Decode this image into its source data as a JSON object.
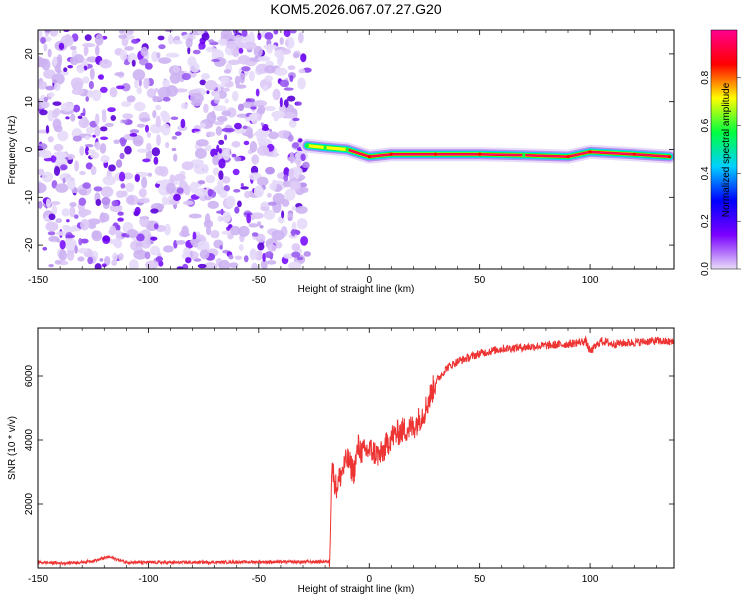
{
  "chart_data": [
    {
      "type": "heatmap",
      "title": "KOM5.2026.067.07.27.G20",
      "xlabel": "Height of straight line (km)",
      "ylabel": "Frequency (Hz)",
      "xlim": [
        -150,
        138
      ],
      "ylim": [
        -25,
        25
      ],
      "x_ticks": [
        "-150",
        "-100",
        "-50",
        "0",
        "50",
        "100"
      ],
      "x_tick_values": [
        -150,
        -100,
        -50,
        0,
        50,
        100
      ],
      "y_ticks": [
        "-20",
        "-10",
        "0",
        "10",
        "20"
      ],
      "y_tick_values": [
        -20,
        -10,
        0,
        10,
        20
      ],
      "colorbar": {
        "label": "Normalized spectral amplitude",
        "range": [
          0,
          1
        ],
        "ticks": [
          "0.0",
          "0.2",
          "0.4",
          "0.6",
          "0.8"
        ],
        "tick_values": [
          0,
          0.2,
          0.4,
          0.6,
          0.8
        ],
        "colors": [
          "#e8ddf8",
          "#7a00ff",
          "#0000ff",
          "#00d0ff",
          "#00ff40",
          "#ffff00",
          "#ff0000",
          "#ff0090"
        ]
      },
      "noise_region": {
        "x_range": [
          -150,
          -28
        ],
        "frequency_range": [
          -25,
          25
        ]
      },
      "signal_track": [
        {
          "x": -28,
          "freq": 0.8,
          "amp": 0.45
        },
        {
          "x": -20,
          "freq": 0.4,
          "amp": 0.55
        },
        {
          "x": -10,
          "freq": 0.0,
          "amp": 0.6
        },
        {
          "x": 0,
          "freq": -1.5,
          "amp": 0.8
        },
        {
          "x": 10,
          "freq": -1.0,
          "amp": 0.9
        },
        {
          "x": 30,
          "freq": -1.0,
          "amp": 0.95
        },
        {
          "x": 50,
          "freq": -1.0,
          "amp": 0.9
        },
        {
          "x": 70,
          "freq": -1.2,
          "amp": 0.6
        },
        {
          "x": 90,
          "freq": -1.5,
          "amp": 0.85
        },
        {
          "x": 100,
          "freq": -0.5,
          "amp": 0.75
        },
        {
          "x": 120,
          "freq": -1.0,
          "amp": 0.7
        },
        {
          "x": 136,
          "freq": -1.5,
          "amp": 0.85
        }
      ]
    },
    {
      "type": "line",
      "xlabel": "Height of straight line (km)",
      "ylabel": "SNR (10 * v/v)",
      "xlim": [
        -150,
        138
      ],
      "ylim": [
        0,
        7500
      ],
      "x_ticks": [
        "-150",
        "-100",
        "-50",
        "0",
        "50",
        "100"
      ],
      "x_tick_values": [
        -150,
        -100,
        -50,
        0,
        50,
        100
      ],
      "y_ticks": [
        "2000",
        "4000",
        "6000"
      ],
      "y_tick_values": [
        2000,
        4000,
        6000
      ],
      "color": "#ee3333",
      "series": [
        {
          "x": [
            -150,
            -140,
            -130,
            -123,
            -118,
            -110,
            -90,
            -70,
            -50,
            -40,
            -32,
            -18,
            -17,
            -15,
            -13,
            -10,
            -7,
            -5,
            -3,
            0,
            5,
            10,
            15,
            20,
            25,
            30,
            35,
            40,
            50,
            60,
            70,
            80,
            90,
            95,
            98,
            100,
            105,
            110,
            120,
            130,
            138
          ],
          "y": [
            180,
            150,
            180,
            250,
            350,
            180,
            170,
            180,
            190,
            190,
            190,
            200,
            3200,
            2500,
            2900,
            3400,
            3000,
            3800,
            3600,
            3700,
            3500,
            4100,
            4300,
            4400,
            4900,
            5800,
            6250,
            6450,
            6700,
            6850,
            6900,
            6950,
            7000,
            7050,
            7100,
            6750,
            7100,
            7000,
            7050,
            7100,
            7050
          ]
        }
      ]
    }
  ]
}
